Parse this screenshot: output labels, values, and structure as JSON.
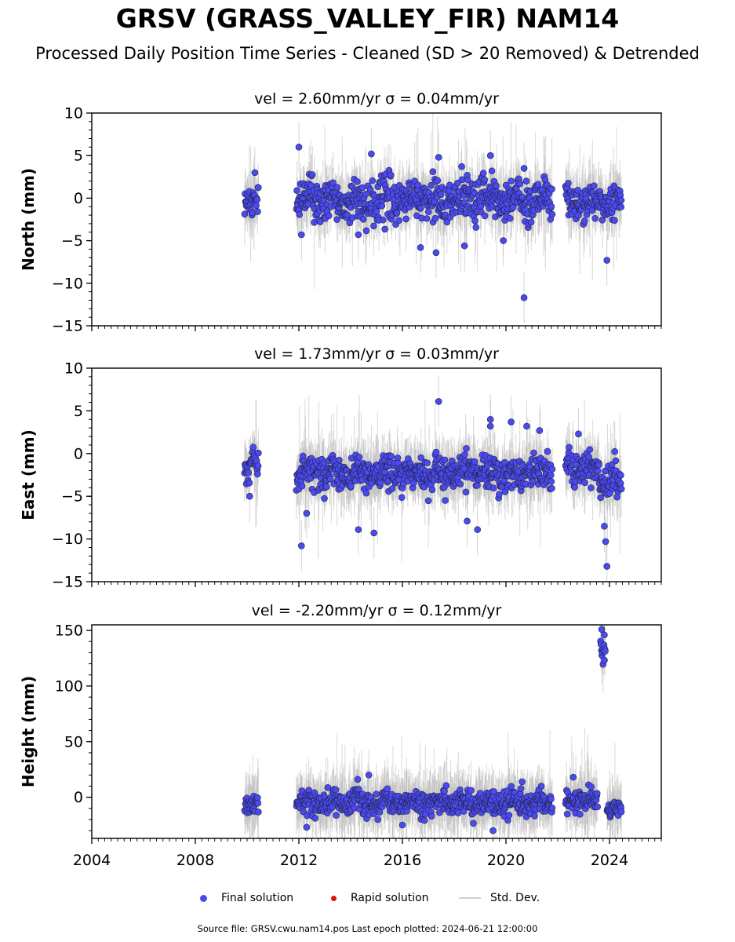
{
  "header": {
    "title": "GRSV (GRASS_VALLEY_FIR) NAM14",
    "subtitle": "Processed Daily Position Time Series - Cleaned (SD > 20 Removed) & Detrended"
  },
  "footer": {
    "source": "Source file: GRSV.cwu.nam14.pos  Last epoch plotted: 2024-06-21 12:00:00"
  },
  "legend": {
    "final": "Final solution",
    "rapid": "Rapid solution",
    "std": "Std. Dev."
  },
  "colors": {
    "final": "#4a4af0",
    "rapid": "#e01010",
    "std": "#c8c8c8"
  },
  "chart_data": [
    {
      "type": "scatter",
      "title": "vel = 2.60mm/yr   σ = 0.04mm/yr",
      "ylabel": "North (mm)",
      "xlim": [
        2004,
        2026
      ],
      "ylim": [
        -15,
        10
      ],
      "yticks": [
        10,
        5,
        0,
        -5,
        -10,
        -15
      ],
      "xticks": [
        2004,
        2008,
        2012,
        2016,
        2020,
        2024
      ],
      "series": [
        {
          "name": "Final solution",
          "segments": [
            {
              "x_start": 2009.9,
              "x_end": 2010.45,
              "mean": -0.5,
              "spread": 1.3
            },
            {
              "x_start": 2011.9,
              "x_end": 2021.8,
              "mean": -0.2,
              "spread": 1.6
            },
            {
              "x_start": 2022.3,
              "x_end": 2024.47,
              "mean": -0.5,
              "spread": 1.3
            }
          ],
          "outliers": [
            {
              "x": 2012.0,
              "y": 6.0
            },
            {
              "x": 2014.8,
              "y": 5.2
            },
            {
              "x": 2017.4,
              "y": 4.8
            },
            {
              "x": 2019.4,
              "y": 5.0
            },
            {
              "x": 2020.7,
              "y": 3.5
            },
            {
              "x": 2010.3,
              "y": 3.0
            },
            {
              "x": 2012.1,
              "y": -4.3
            },
            {
              "x": 2016.7,
              "y": -5.8
            },
            {
              "x": 2017.3,
              "y": -6.4
            },
            {
              "x": 2018.4,
              "y": -5.6
            },
            {
              "x": 2019.9,
              "y": -5.0
            },
            {
              "x": 2020.7,
              "y": -11.7
            },
            {
              "x": 2023.9,
              "y": -7.3
            },
            {
              "x": 2014.3,
              "y": -4.3
            }
          ]
        }
      ]
    },
    {
      "type": "scatter",
      "title": "vel = 1.73mm/yr   σ = 0.03mm/yr",
      "ylabel": "East (mm)",
      "xlim": [
        2004,
        2026
      ],
      "ylim": [
        -15,
        10
      ],
      "yticks": [
        10,
        5,
        0,
        -5,
        -10,
        -15
      ],
      "xticks": [
        2004,
        2008,
        2012,
        2016,
        2020,
        2024
      ],
      "series": [
        {
          "name": "Final solution",
          "segments": [
            {
              "x_start": 2009.9,
              "x_end": 2010.45,
              "mean": -1.6,
              "spread": 1.2
            },
            {
              "x_start": 2011.9,
              "x_end": 2021.8,
              "mean": -2.3,
              "spread": 1.3
            },
            {
              "x_start": 2022.3,
              "x_end": 2023.6,
              "mean": -1.6,
              "spread": 1.1
            },
            {
              "x_start": 2023.6,
              "x_end": 2024.47,
              "mean": -3.0,
              "spread": 1.5
            }
          ],
          "outliers": [
            {
              "x": 2017.4,
              "y": 6.1
            },
            {
              "x": 2019.4,
              "y": 4.0
            },
            {
              "x": 2019.4,
              "y": 3.2
            },
            {
              "x": 2020.2,
              "y": 3.7
            },
            {
              "x": 2020.8,
              "y": 3.2
            },
            {
              "x": 2021.3,
              "y": 2.7
            },
            {
              "x": 2022.8,
              "y": 2.3
            },
            {
              "x": 2012.1,
              "y": -10.8
            },
            {
              "x": 2014.9,
              "y": -9.3
            },
            {
              "x": 2014.3,
              "y": -8.9
            },
            {
              "x": 2018.9,
              "y": -8.9
            },
            {
              "x": 2018.5,
              "y": -7.9
            },
            {
              "x": 2023.85,
              "y": -10.3
            },
            {
              "x": 2023.9,
              "y": -13.2
            },
            {
              "x": 2023.8,
              "y": -8.5
            },
            {
              "x": 2012.3,
              "y": -7.0
            },
            {
              "x": 2010.1,
              "y": -5.0
            }
          ]
        }
      ]
    },
    {
      "type": "scatter",
      "title": "vel = -2.20mm/yr   σ = 0.12mm/yr",
      "ylabel": "Height (mm)",
      "xlim": [
        2004,
        2026
      ],
      "ylim": [
        -37,
        155
      ],
      "yticks": [
        150,
        100,
        50,
        0
      ],
      "xticks": [
        2004,
        2008,
        2012,
        2016,
        2020,
        2024
      ],
      "series": [
        {
          "name": "Final solution",
          "segments": [
            {
              "x_start": 2009.9,
              "x_end": 2010.45,
              "mean": -7,
              "spread": 6
            },
            {
              "x_start": 2011.9,
              "x_end": 2021.8,
              "mean": -5,
              "spread": 7
            },
            {
              "x_start": 2022.3,
              "x_end": 2023.55,
              "mean": -3,
              "spread": 6
            },
            {
              "x_start": 2023.65,
              "x_end": 2023.85,
              "mean": 132,
              "spread": 8
            },
            {
              "x_start": 2023.9,
              "x_end": 2024.47,
              "mean": -10,
              "spread": 5
            }
          ],
          "outliers": [
            {
              "x": 2014.7,
              "y": 20
            },
            {
              "x": 2022.6,
              "y": 18
            },
            {
              "x": 2019.5,
              "y": -30
            },
            {
              "x": 2012.3,
              "y": -27
            },
            {
              "x": 2016.0,
              "y": -25
            },
            {
              "x": 2023.7,
              "y": 151
            },
            {
              "x": 2023.8,
              "y": 146
            }
          ]
        }
      ]
    }
  ]
}
